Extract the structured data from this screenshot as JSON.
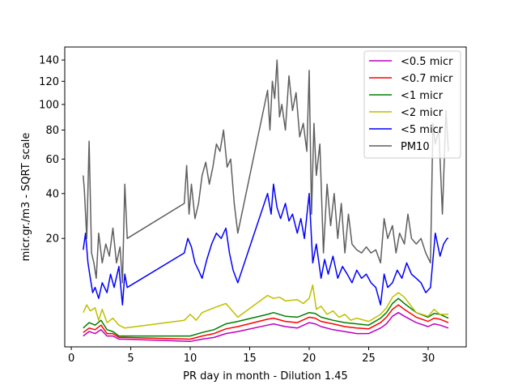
{
  "chart_data": {
    "type": "line",
    "title": "",
    "xlabel": "PR day in month - Dilution 1.45",
    "ylabel": "micr.gr./m3 - SQRT scale",
    "y_scale": "sqrt",
    "xlim": [
      -0.55,
      33.2
    ],
    "ylim": [
      0,
      153
    ],
    "xticks": [
      {
        "v": 0,
        "label": "0"
      },
      {
        "v": 5,
        "label": "5"
      },
      {
        "v": 10,
        "label": "10"
      },
      {
        "v": 15,
        "label": "15"
      },
      {
        "v": 20,
        "label": "20"
      },
      {
        "v": 25,
        "label": "25"
      },
      {
        "v": 30,
        "label": "30"
      }
    ],
    "yticks": [
      {
        "v": 20,
        "label": "20"
      },
      {
        "v": 40,
        "label": "40"
      },
      {
        "v": 60,
        "label": "60"
      },
      {
        "v": 80,
        "label": "80"
      },
      {
        "v": 100,
        "label": "100"
      },
      {
        "v": 120,
        "label": "120"
      },
      {
        "v": 140,
        "label": "140"
      }
    ],
    "grid": false,
    "legend_position": "top-right",
    "series": [
      {
        "name": "<0.5 micr",
        "color": "#bf00bf",
        "x": [
          1.0,
          1.5,
          2.0,
          2.5,
          3.0,
          3.5,
          4.0,
          4.5,
          10.0,
          11.0,
          12.0,
          13.0,
          14.0,
          16.5,
          17.0,
          18.0,
          19.0,
          20.0,
          20.5,
          21.0,
          22.0,
          23.0,
          24.0,
          25.0,
          26.0,
          26.5,
          27.0,
          27.5,
          28.0,
          29.0,
          30.0,
          30.5,
          31.0,
          31.7
        ],
        "y": [
          0.2,
          0.4,
          0.3,
          0.5,
          0.2,
          0.2,
          0.1,
          0.1,
          0.05,
          0.1,
          0.15,
          0.3,
          0.4,
          0.8,
          0.9,
          0.7,
          0.6,
          1.0,
          0.9,
          0.7,
          0.5,
          0.4,
          0.3,
          0.3,
          0.6,
          0.9,
          1.6,
          2.0,
          1.6,
          1.0,
          0.7,
          0.9,
          0.8,
          0.6
        ]
      },
      {
        "name": "<0.7 micr",
        "color": "#ff0000",
        "x": [
          1.0,
          1.5,
          2.0,
          2.5,
          3.0,
          3.5,
          4.0,
          4.5,
          10.0,
          11.0,
          12.0,
          13.0,
          14.0,
          16.5,
          17.0,
          18.0,
          19.0,
          20.0,
          20.5,
          21.0,
          22.0,
          23.0,
          24.0,
          25.0,
          26.0,
          26.5,
          27.0,
          27.5,
          28.0,
          29.0,
          30.0,
          30.5,
          31.0,
          31.7
        ],
        "y": [
          0.35,
          0.6,
          0.5,
          0.8,
          0.3,
          0.3,
          0.15,
          0.15,
          0.1,
          0.2,
          0.3,
          0.55,
          0.7,
          1.3,
          1.4,
          1.1,
          1.0,
          1.5,
          1.4,
          1.1,
          0.9,
          0.7,
          0.6,
          0.55,
          1.0,
          1.5,
          2.4,
          3.0,
          2.4,
          1.5,
          1.1,
          1.4,
          1.3,
          1.0
        ]
      },
      {
        "name": "<1 micr",
        "color": "#008000",
        "x": [
          1.0,
          1.5,
          2.0,
          2.5,
          3.0,
          3.5,
          4.0,
          4.5,
          10.0,
          11.0,
          12.0,
          13.0,
          14.0,
          16.5,
          17.0,
          18.0,
          19.0,
          20.0,
          20.5,
          21.0,
          22.0,
          23.0,
          24.0,
          25.0,
          26.0,
          26.5,
          27.0,
          27.5,
          28.0,
          29.0,
          30.0,
          30.5,
          31.0,
          31.7
        ],
        "y": [
          0.6,
          1.0,
          0.8,
          1.2,
          0.5,
          0.4,
          0.2,
          0.2,
          0.2,
          0.35,
          0.5,
          0.9,
          1.1,
          1.8,
          2.0,
          1.6,
          1.5,
          2.0,
          1.9,
          1.5,
          1.2,
          1.0,
          0.9,
          0.8,
          1.4,
          2.0,
          3.2,
          4.0,
          3.2,
          2.0,
          1.5,
          1.9,
          1.8,
          1.4
        ]
      },
      {
        "name": "<2 micr",
        "color": "#bfbf00",
        "x": [
          1.0,
          1.3,
          1.6,
          2.0,
          2.3,
          2.6,
          3.0,
          3.5,
          4.0,
          4.5,
          9.5,
          10.0,
          10.5,
          11.0,
          12.0,
          13.0,
          14.0,
          16.5,
          17.0,
          17.5,
          18.0,
          19.0,
          19.5,
          20.0,
          20.3,
          20.6,
          21.0,
          21.5,
          22.0,
          22.5,
          23.0,
          23.5,
          24.0,
          25.0,
          26.0,
          26.5,
          27.0,
          27.5,
          28.0,
          28.5,
          29.0,
          30.0,
          30.5,
          31.0,
          31.7
        ],
        "y": [
          2.0,
          3.0,
          2.2,
          2.6,
          1.2,
          2.4,
          1.0,
          1.4,
          0.8,
          0.6,
          1.2,
          1.8,
          1.2,
          2.0,
          2.6,
          3.2,
          1.5,
          4.5,
          4.0,
          4.2,
          3.6,
          3.8,
          3.2,
          4.0,
          6.5,
          2.4,
          2.8,
          1.8,
          2.2,
          1.5,
          1.8,
          1.2,
          1.4,
          1.1,
          1.8,
          2.6,
          4.2,
          5.0,
          4.2,
          3.0,
          2.0,
          1.6,
          2.4,
          1.8,
          1.8
        ]
      },
      {
        "name": "<5 micr",
        "color": "#0000ff",
        "x": [
          1.0,
          1.2,
          1.4,
          1.6,
          1.8,
          2.0,
          2.3,
          2.6,
          3.0,
          3.3,
          3.6,
          4.0,
          4.3,
          4.5,
          4.7,
          9.5,
          9.8,
          10.1,
          10.4,
          10.7,
          11.0,
          11.4,
          11.8,
          12.2,
          12.6,
          13.0,
          13.3,
          13.6,
          14.0,
          16.5,
          16.8,
          17.0,
          17.3,
          17.6,
          18.0,
          18.3,
          18.6,
          19.0,
          19.3,
          19.6,
          20.0,
          20.3,
          20.6,
          21.0,
          21.3,
          21.6,
          22.0,
          22.4,
          22.8,
          23.2,
          23.6,
          24.0,
          24.4,
          24.8,
          25.2,
          25.6,
          26.0,
          26.3,
          26.6,
          27.0,
          27.4,
          27.8,
          28.2,
          28.6,
          29.0,
          29.4,
          29.8,
          30.2,
          30.6,
          31.0,
          31.3,
          31.6,
          31.7
        ],
        "y": [
          16,
          22,
          12,
          8,
          5,
          6,
          4,
          7,
          5,
          9,
          6,
          11,
          3,
          9,
          6,
          15,
          20,
          17,
          12,
          10,
          8,
          13,
          18,
          22,
          20,
          24,
          15,
          10,
          7,
          40,
          30,
          45,
          33,
          28,
          35,
          27,
          30,
          22,
          28,
          20,
          40,
          12,
          18,
          8,
          13,
          9,
          14,
          8,
          11,
          9,
          7,
          10,
          8,
          9,
          7,
          6,
          3,
          9,
          6,
          7,
          10,
          8,
          12,
          9,
          8,
          7,
          5,
          6,
          22,
          14,
          18,
          20,
          20
        ]
      },
      {
        "name": "PM10",
        "color": "#5f5f5f",
        "x": [
          1.0,
          1.1,
          1.3,
          1.5,
          1.7,
          1.9,
          2.1,
          2.3,
          2.6,
          2.9,
          3.2,
          3.5,
          3.8,
          4.1,
          4.3,
          4.5,
          4.7,
          9.5,
          9.7,
          9.9,
          10.1,
          10.4,
          10.7,
          11.0,
          11.3,
          11.6,
          11.9,
          12.2,
          12.5,
          12.8,
          13.1,
          13.4,
          13.7,
          14.0,
          16.5,
          16.7,
          16.9,
          17.1,
          17.3,
          17.5,
          17.7,
          18.0,
          18.3,
          18.6,
          18.9,
          19.2,
          19.5,
          19.8,
          20.0,
          20.2,
          20.4,
          20.6,
          20.9,
          21.2,
          21.5,
          21.8,
          22.1,
          22.4,
          22.7,
          23.0,
          23.3,
          23.6,
          24.0,
          24.4,
          24.8,
          25.2,
          25.6,
          26.0,
          26.3,
          26.6,
          27.0,
          27.3,
          27.6,
          28.0,
          28.3,
          28.6,
          29.0,
          29.4,
          29.8,
          30.2,
          30.4,
          30.6,
          30.9,
          31.2,
          31.5,
          31.7
        ],
        "y": [
          50,
          42,
          20,
          72,
          15,
          12,
          8,
          22,
          12,
          18,
          14,
          24,
          12,
          17,
          7,
          45,
          20,
          35,
          56,
          30,
          45,
          28,
          35,
          50,
          58,
          45,
          55,
          70,
          65,
          80,
          55,
          60,
          35,
          22,
          112,
          80,
          120,
          105,
          140,
          90,
          100,
          80,
          125,
          95,
          110,
          75,
          85,
          65,
          130,
          30,
          85,
          50,
          70,
          15,
          45,
          25,
          40,
          20,
          35,
          15,
          30,
          18,
          16,
          15,
          17,
          15,
          16,
          12,
          28,
          20,
          25,
          15,
          22,
          18,
          30,
          20,
          18,
          20,
          15,
          12,
          85,
          70,
          80,
          30,
          95,
          65
        ]
      }
    ]
  }
}
